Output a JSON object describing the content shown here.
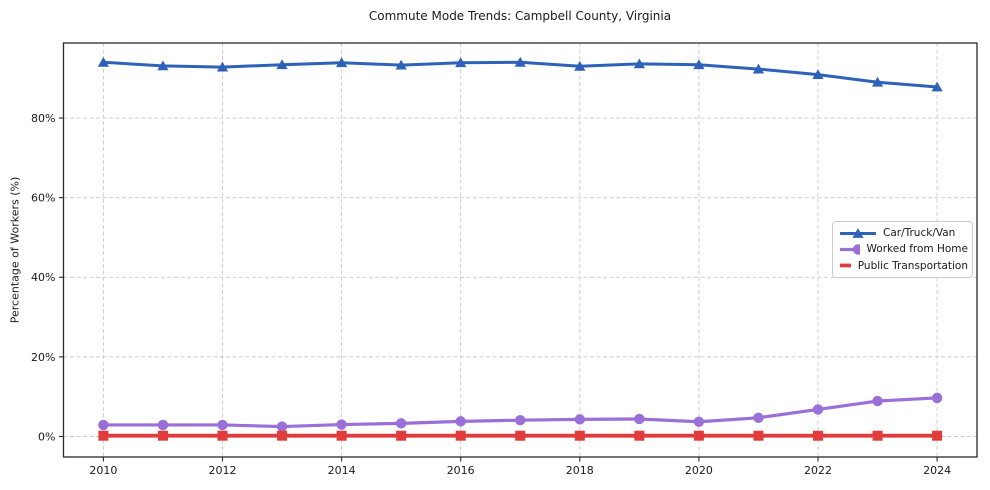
{
  "chart_data": {
    "type": "line",
    "title": "Commute Mode Trends: Campbell County, Virginia",
    "xlabel": "",
    "ylabel": "Percentage of Workers (%)",
    "x": [
      2010,
      2011,
      2012,
      2013,
      2014,
      2015,
      2016,
      2017,
      2018,
      2019,
      2020,
      2021,
      2022,
      2023,
      2024
    ],
    "series": [
      {
        "name": "Car/Truck/Van",
        "color": "#2e62b8",
        "marker": "triangle",
        "line_width": 3,
        "values": [
          94.0,
          93.1,
          92.8,
          93.4,
          93.9,
          93.3,
          93.9,
          94.0,
          93.0,
          93.6,
          93.4,
          92.3,
          90.9,
          89.0,
          87.8
        ]
      },
      {
        "name": "Worked from Home",
        "color": "#9a6fd8",
        "marker": "circle",
        "line_width": 3.2,
        "values": [
          2.9,
          2.9,
          2.9,
          2.5,
          3.0,
          3.3,
          3.8,
          4.1,
          4.3,
          4.4,
          3.7,
          4.7,
          6.8,
          8.9,
          9.7
        ]
      },
      {
        "name": "Public Transportation",
        "color": "#e23b3b",
        "marker": "square",
        "line_width": 3.8,
        "values": [
          0.2,
          0.2,
          0.2,
          0.2,
          0.2,
          0.2,
          0.2,
          0.2,
          0.2,
          0.2,
          0.2,
          0.2,
          0.2,
          0.2,
          0.2
        ]
      }
    ],
    "x_ticks": [
      2010,
      2012,
      2014,
      2016,
      2018,
      2020,
      2022,
      2024
    ],
    "y_ticks": [
      0,
      20,
      40,
      60,
      80
    ],
    "y_tick_suffix": "%",
    "xlim": [
      2009.33,
      2024.67
    ],
    "ylim": [
      -5.15,
      98.85
    ],
    "grid": true,
    "grid_style": "dashed",
    "legend_position": "center right",
    "style": {
      "background": "#ffffff",
      "grid_color": "#cacaca",
      "axis_color": "#2a2a2a",
      "text_color": "#1a1a1a",
      "legend_border_color": "#cccccc"
    }
  }
}
